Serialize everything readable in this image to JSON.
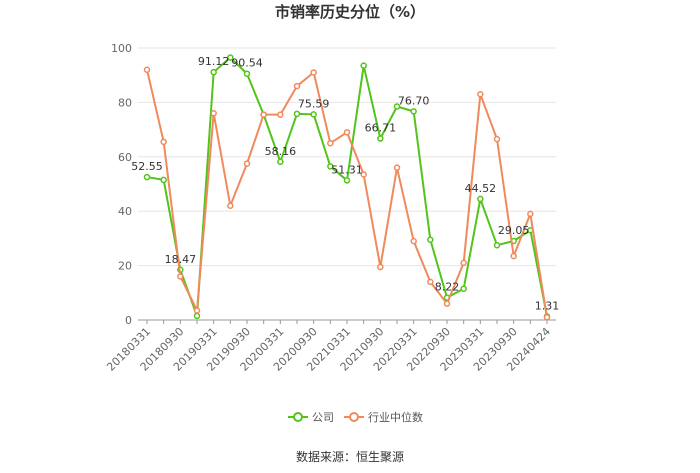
{
  "chart_data": {
    "type": "line",
    "title": "市销率历史分位（%）",
    "source": "数据来源：恒生聚源",
    "ylim": [
      0,
      100
    ],
    "yticks": [
      0,
      20,
      40,
      60,
      80,
      100
    ],
    "grid": true,
    "legend_position": "bottom",
    "x": [
      "20180331",
      "20180630",
      "20180930",
      "20181231",
      "20190331",
      "20190630",
      "20190930",
      "20191231",
      "20200331",
      "20200630",
      "20200930",
      "20201231",
      "20210331",
      "20210630",
      "20210930",
      "20211231",
      "20220331",
      "20220630",
      "20220930",
      "20221231",
      "20230331",
      "20230630",
      "20230930",
      "20231231",
      "20240424"
    ],
    "x_tick_labels": [
      "20180331",
      "20180930",
      "20190331",
      "20190930",
      "20200331",
      "20200930",
      "20210331",
      "20210930",
      "20220331",
      "20220930",
      "20230331",
      "20230930",
      "20240424"
    ],
    "series": [
      {
        "name": "公司",
        "color": "#52c41a",
        "values": [
          52.55,
          51.5,
          18.47,
          1.5,
          91.12,
          96.5,
          90.54,
          75.5,
          58.16,
          75.8,
          75.59,
          56.5,
          51.31,
          93.5,
          66.71,
          78.5,
          76.7,
          29.5,
          8.22,
          11.5,
          44.52,
          27.5,
          29.05,
          33.0,
          1.31
        ]
      },
      {
        "name": "行业中位数",
        "color": "#f08a5d",
        "values": [
          92.0,
          65.5,
          16.0,
          3.5,
          76.0,
          42.0,
          57.5,
          75.5,
          75.5,
          86.0,
          91.0,
          65.0,
          69.0,
          53.5,
          19.5,
          56.0,
          29.0,
          14.0,
          6.0,
          21.0,
          83.0,
          66.5,
          23.5,
          39.0,
          1.0
        ]
      }
    ],
    "data_labels": [
      {
        "index": 0,
        "text": "52.55"
      },
      {
        "index": 2,
        "text": "18.47"
      },
      {
        "index": 4,
        "text": "91.12"
      },
      {
        "index": 6,
        "text": "90.54"
      },
      {
        "index": 8,
        "text": "58.16"
      },
      {
        "index": 10,
        "text": "75.59"
      },
      {
        "index": 12,
        "text": "51.31"
      },
      {
        "index": 14,
        "text": "66.71"
      },
      {
        "index": 16,
        "text": "76.70"
      },
      {
        "index": 18,
        "text": "8.22"
      },
      {
        "index": 20,
        "text": "44.52"
      },
      {
        "index": 22,
        "text": "29.05"
      },
      {
        "index": 24,
        "text": "1.31"
      }
    ]
  }
}
